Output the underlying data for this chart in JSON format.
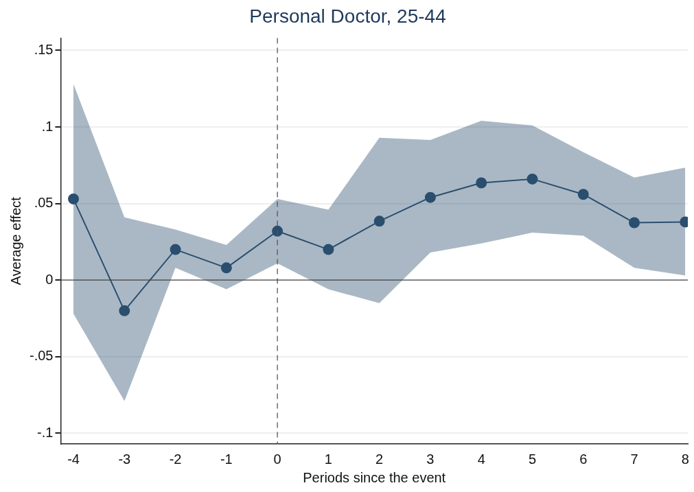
{
  "chart_data": {
    "type": "line",
    "title": "Personal Doctor, 25-44",
    "xlabel": "Periods since the event",
    "ylabel": "Average effect",
    "x": [
      -4,
      -3,
      -2,
      -1,
      0,
      1,
      2,
      3,
      4,
      5,
      6,
      7,
      8
    ],
    "series": [
      {
        "color": "#2a4e6e",
        "values": [
          0.053,
          -0.02,
          0.02,
          0.008,
          0.032,
          0.02,
          0.0385,
          0.054,
          0.0635,
          0.066,
          0.056,
          0.0375,
          0.038
        ],
        "lower": [
          -0.022,
          -0.079,
          0.008,
          -0.006,
          0.011,
          -0.006,
          -0.015,
          0.018,
          0.024,
          0.031,
          0.029,
          0.008,
          0.003
        ],
        "upper": [
          0.128,
          0.041,
          0.033,
          0.023,
          0.053,
          0.046,
          0.093,
          0.0915,
          0.104,
          0.101,
          0.0835,
          0.067,
          0.0735
        ]
      }
    ],
    "xlim": [
      -4.25,
      8.05
    ],
    "xticks": [
      -4,
      -3,
      -2,
      -1,
      0,
      1,
      2,
      3,
      4,
      5,
      6,
      7,
      8
    ],
    "ylim": [
      -0.107,
      0.158
    ],
    "yticks": [
      {
        "value": -0.1,
        "label": "-.1"
      },
      {
        "value": -0.05,
        "label": "-.05"
      },
      0,
      {
        "value": 0.05,
        "label": ".05"
      },
      {
        "value": 0.1,
        "label": ".1"
      },
      {
        "value": 0.15,
        "label": ".15"
      }
    ],
    "ref_lines": [
      {
        "axis": "x",
        "value": 0,
        "line_style": "dashed",
        "color": "#555555"
      },
      {
        "axis": "y",
        "value": 0,
        "line_style": "solid",
        "color": "#444444"
      }
    ],
    "grid": "y",
    "legend": false,
    "marker": "circle"
  }
}
